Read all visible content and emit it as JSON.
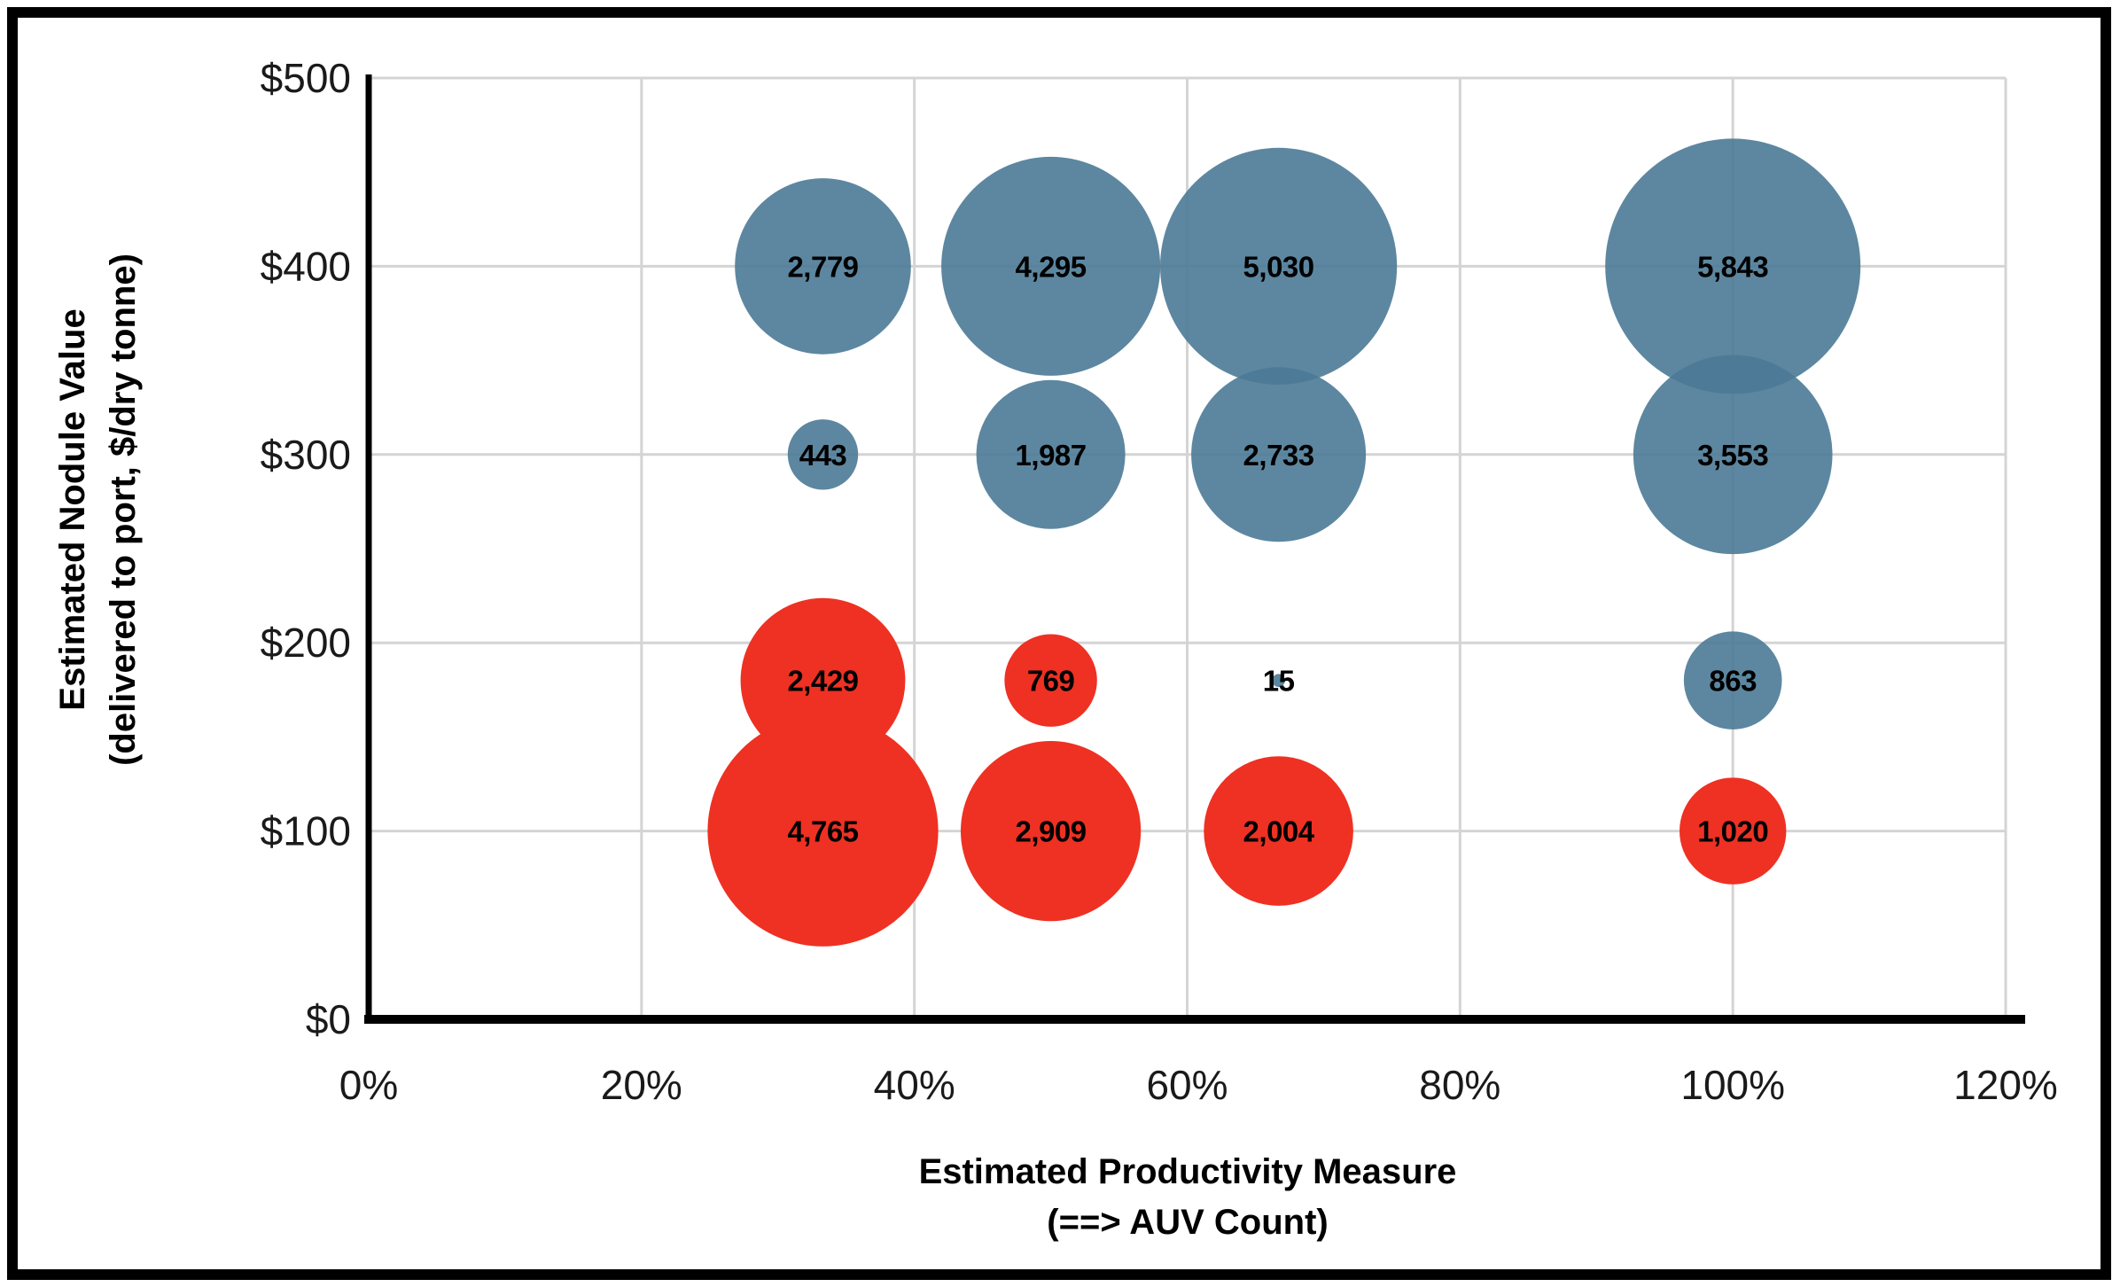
{
  "chart_data": {
    "type": "bubble",
    "title": "",
    "grid": true,
    "legend": false,
    "x_axis": {
      "label_line1": "Estimated Productivity Measure",
      "label_line2": "(==> AUV Count)",
      "min": 0,
      "max": 120,
      "tick_values": [
        0,
        20,
        40,
        60,
        80,
        100,
        120
      ],
      "tick_labels": [
        "0%",
        "20%",
        "40%",
        "60%",
        "80%",
        "100%",
        "120%"
      ]
    },
    "y_axis": {
      "label_line1": "Estimated Nodule Value",
      "label_line2": "(delivered to port, $/dry tonne)",
      "min": 0,
      "max": 500,
      "tick_values": [
        0,
        100,
        200,
        300,
        400,
        500
      ],
      "tick_labels": [
        "$0",
        "$100",
        "$200",
        "$300",
        "$400",
        "$500"
      ]
    },
    "size_note": "bubble area proportional to value",
    "series": [
      {
        "name": "blue-bubbles",
        "color": "#4b7a96",
        "opacity": 0.9,
        "points": [
          {
            "x": 33.3,
            "y": 400,
            "value": 2779,
            "label": "2,779"
          },
          {
            "x": 50,
            "y": 400,
            "value": 4295,
            "label": "4,295"
          },
          {
            "x": 66.7,
            "y": 400,
            "value": 5030,
            "label": "5,030"
          },
          {
            "x": 100,
            "y": 400,
            "value": 5843,
            "label": "5,843"
          },
          {
            "x": 33.3,
            "y": 300,
            "value": 443,
            "label": "443"
          },
          {
            "x": 50,
            "y": 300,
            "value": 1987,
            "label": "1,987"
          },
          {
            "x": 66.7,
            "y": 300,
            "value": 2733,
            "label": "2,733"
          },
          {
            "x": 100,
            "y": 300,
            "value": 3553,
            "label": "3,553"
          },
          {
            "x": 66.7,
            "y": 180,
            "value": 15,
            "label": "15"
          },
          {
            "x": 100,
            "y": 180,
            "value": 863,
            "label": "863"
          }
        ]
      },
      {
        "name": "red-bubbles",
        "color": "#ee3123",
        "opacity": 1,
        "points": [
          {
            "x": 33.3,
            "y": 180,
            "value": 2429,
            "label": "2,429"
          },
          {
            "x": 50,
            "y": 180,
            "value": 769,
            "label": "769"
          },
          {
            "x": 33.3,
            "y": 100,
            "value": 4765,
            "label": "4,765"
          },
          {
            "x": 50,
            "y": 100,
            "value": 2909,
            "label": "2,909"
          },
          {
            "x": 66.7,
            "y": 100,
            "value": 2004,
            "label": "2,004"
          },
          {
            "x": 100,
            "y": 100,
            "value": 1020,
            "label": "1,020"
          }
        ]
      }
    ],
    "colors": {
      "blue_series": "#5d87a1",
      "red_series": "#ee3123",
      "gridline": "#d4d4d4",
      "axis": "#000000",
      "bubble_label": "#000000",
      "border": "#000000"
    }
  }
}
